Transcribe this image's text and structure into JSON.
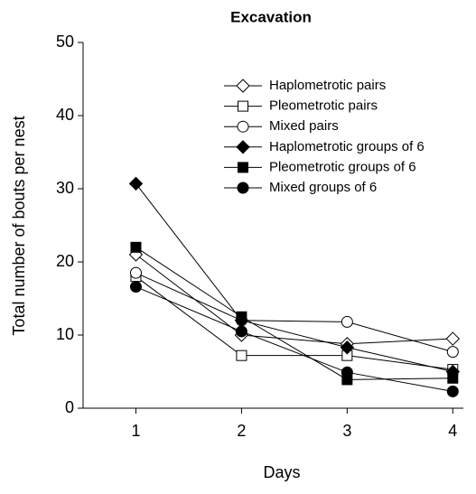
{
  "chart_data": {
    "type": "line",
    "title": "Excavation",
    "xlabel": "Days",
    "ylabel": "Total number of bouts per nest",
    "x": [
      1,
      2,
      3,
      4
    ],
    "series": [
      {
        "name": "Haplometrotic pairs",
        "color": "#000000",
        "marker": "diamond",
        "filled": false,
        "values": [
          21.0,
          10.0,
          8.8,
          9.5
        ]
      },
      {
        "name": "Pleometrotic pairs",
        "color": "#000000",
        "marker": "square",
        "filled": false,
        "values": [
          18.0,
          7.2,
          7.2,
          5.3
        ]
      },
      {
        "name": "Mixed pairs",
        "color": "#000000",
        "marker": "circle",
        "filled": false,
        "values": [
          18.5,
          12.0,
          11.8,
          7.7
        ]
      },
      {
        "name": "Haplometrotic groups of 6",
        "color": "#000000",
        "marker": "diamond",
        "filled": true,
        "values": [
          30.7,
          12.0,
          8.3,
          5.0
        ]
      },
      {
        "name": "Pleometrotic groups of 6",
        "color": "#000000",
        "marker": "square",
        "filled": true,
        "values": [
          22.0,
          12.5,
          3.9,
          4.1
        ]
      },
      {
        "name": "Mixed groups of 6",
        "color": "#000000",
        "marker": "circle",
        "filled": true,
        "values": [
          16.6,
          10.5,
          4.9,
          2.3
        ]
      }
    ],
    "xlim": [
      0.5,
      4.1
    ],
    "xticks": [
      1,
      2,
      3,
      4
    ],
    "ylim": [
      0,
      50
    ],
    "yticks": [
      0,
      10,
      20,
      30,
      40,
      50
    ],
    "grid": false,
    "legend": "upper right"
  }
}
